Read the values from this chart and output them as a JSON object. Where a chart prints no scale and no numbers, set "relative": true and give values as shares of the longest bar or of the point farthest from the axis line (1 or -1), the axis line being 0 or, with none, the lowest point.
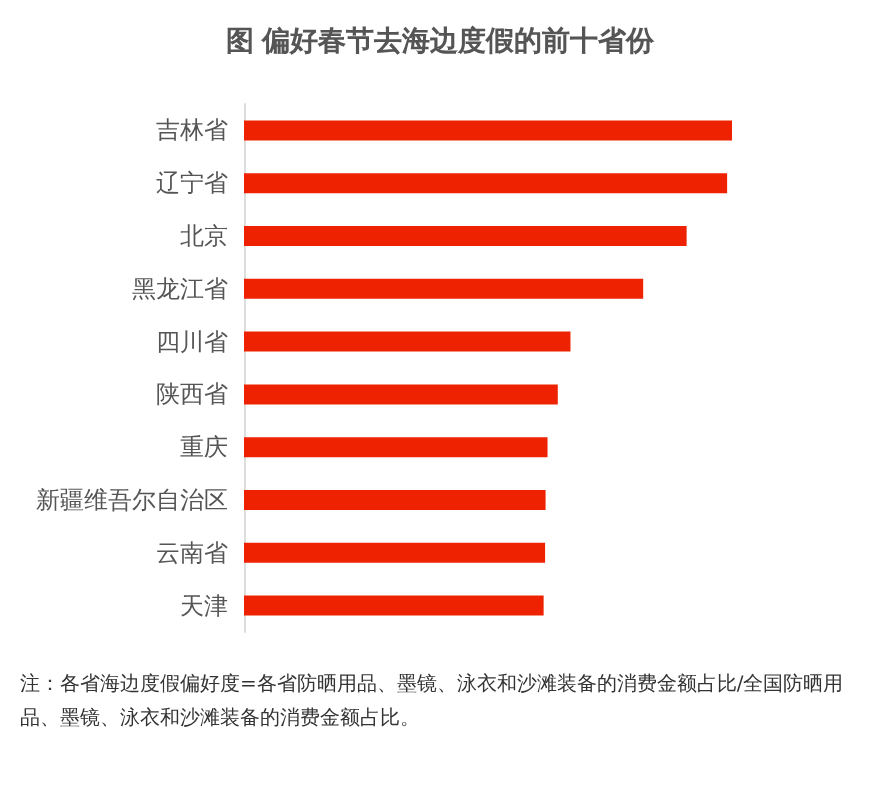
{
  "chart_data": {
    "type": "bar",
    "orientation": "horizontal",
    "relative": true,
    "title": "图 偏好春节去海边度假的前十省份",
    "categories": [
      "吉林省",
      "辽宁省",
      "北京",
      "黑龙江省",
      "四川省",
      "陕西省",
      "重庆",
      "新疆维吾尔自治区",
      "云南省",
      "天津"
    ],
    "values": [
      1,
      0.99,
      0.907,
      0.818,
      0.669,
      0.643,
      0.622,
      0.618,
      0.617,
      0.614
    ],
    "color": "#ee2200",
    "annotations": [
      "注：各省海边度假偏好度=各省防晒用品、墨镜、泳衣和沙滩装备的消费金额占比/全国防晒用品、墨镜、泳衣和沙滩装备的消费金额占比。"
    ]
  }
}
